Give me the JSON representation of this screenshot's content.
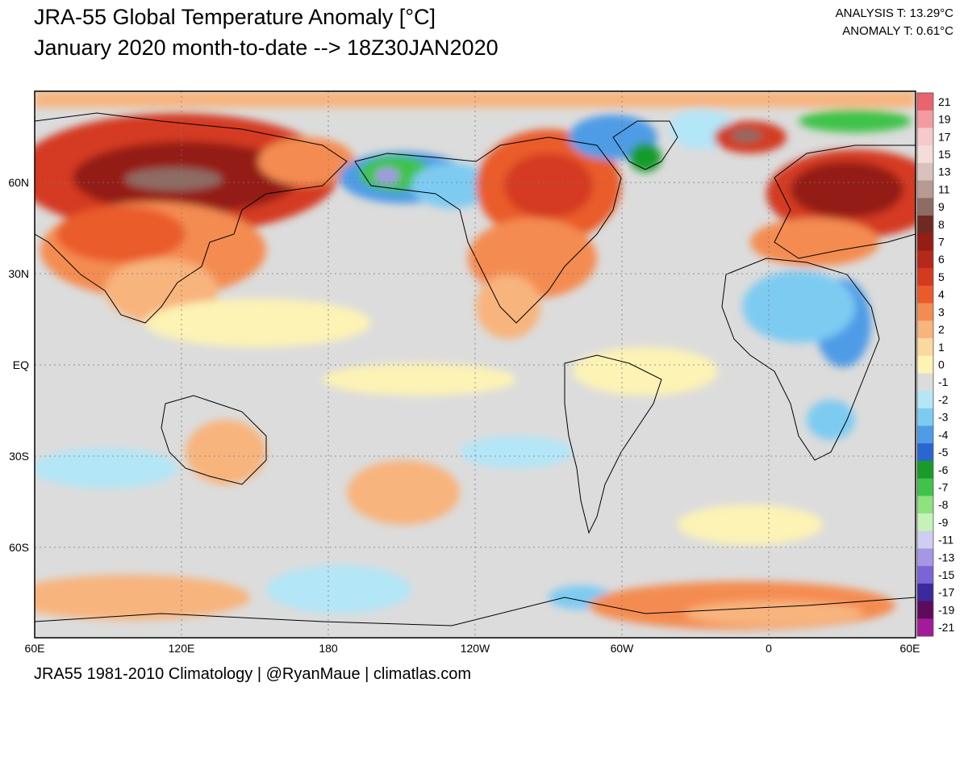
{
  "header": {
    "title_line1": "JRA-55 Global Temperature Anomaly [°C]",
    "title_line2": "January 2020 month-to-date --> 18Z30JAN2020",
    "analysis_t": "ANALYSIS T: 13.29°C",
    "anomaly_t": "ANOMALY T: 0.61°C"
  },
  "map": {
    "projection": "equirectangular",
    "central_meridian": "240E",
    "graticule": "dotted",
    "lat_labels": [
      "60N",
      "30N",
      "EQ",
      "30S",
      "60S"
    ],
    "lon_labels": [
      "60E",
      "120E",
      "180",
      "120W",
      "60W",
      "0",
      "60E"
    ],
    "colors": {
      "ocean_neutral": "#dcdcdc",
      "ocean_background": "#dcdcdc",
      "coastline": "#000000",
      "frame": "#000000"
    },
    "anomaly_regions": [
      {
        "name": "Siberia warm",
        "level": 7
      },
      {
        "name": "Central Siberia peak",
        "level": 11
      },
      {
        "name": "Europe / Russia warm",
        "level": 7
      },
      {
        "name": "Scandinavia peak",
        "level": 9
      },
      {
        "name": "Eastern North America warm",
        "level": 5
      },
      {
        "name": "Alaska cold",
        "level": -6
      },
      {
        "name": "Alaska peak cold",
        "level": -9
      },
      {
        "name": "Greenland / Baffin cold",
        "level": -3
      },
      {
        "name": "Svalbard-Novaya cold",
        "level": -6
      },
      {
        "name": "East Africa cold",
        "level": -3
      },
      {
        "name": "Central Asia warm",
        "level": 4
      },
      {
        "name": "Antarctica warm",
        "level": 3
      }
    ]
  },
  "colorbar": {
    "labels": [
      "21",
      "19",
      "17",
      "15",
      "13",
      "11",
      "9",
      "8",
      "7",
      "6",
      "5",
      "4",
      "3",
      "2",
      "1",
      "0",
      "-1",
      "-2",
      "-3",
      "-4",
      "-5",
      "-6",
      "-7",
      "-8",
      "-9",
      "-11",
      "-13",
      "-15",
      "-17",
      "-19",
      "-21"
    ],
    "colors": [
      "#e8646e",
      "#f39ba1",
      "#f6c9cb",
      "#f3dcd9",
      "#d9c2bc",
      "#b79a92",
      "#8f6c63",
      "#6e2a22",
      "#941d14",
      "#b5281a",
      "#d43a20",
      "#ea5b2c",
      "#f48c51",
      "#f8b47d",
      "#fbd99e",
      "#fdf3b5",
      "#dcdcdc",
      "#b3e6f7",
      "#7ecbf2",
      "#4f9ce6",
      "#2a66d1",
      "#199b2a",
      "#40c34a",
      "#8ee37f",
      "#c4f2b8",
      "#cfcdf1",
      "#a597e6",
      "#7c64d6",
      "#3a2a9e",
      "#5e0b5c",
      "#a31a9a"
    ]
  },
  "footer": {
    "text": "JRA55 1981-2010 Climatology | @RyanMaue | climatlas.com"
  }
}
